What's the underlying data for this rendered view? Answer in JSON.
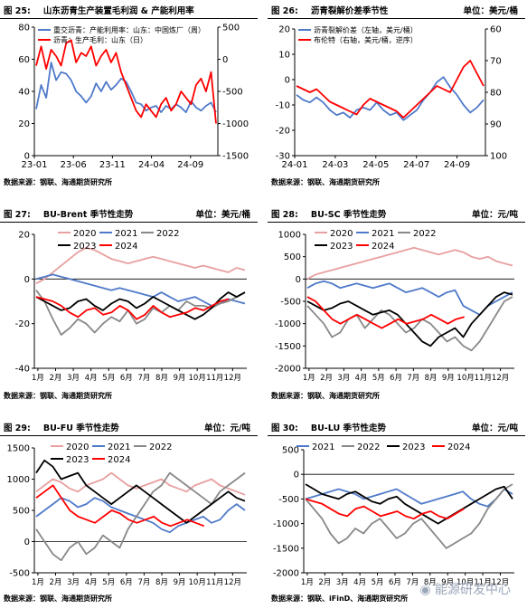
{
  "footer": {
    "brand": "能源研发中心"
  },
  "source_text": {
    "p1": "数据来源：钢联、海通期货研究所",
    "p2": "数据来源：钢联、海通期货研究所",
    "p3": "数据来源：钢联、海通期货研究所",
    "p4": "数据来源：钢联、海通期货研究所",
    "p5": "数据来源：钢联、海通期货研究所",
    "p6": "数据来源：钢联、iFinD、海通期货研究所"
  },
  "chart_data": [
    {
      "id": "p1",
      "fig_no": "图 25:",
      "type": "line",
      "title": "山东沥青生产装置毛利润 & 产能利用率",
      "unit": "",
      "x_ticks": [
        "23-01",
        "23-06",
        "23-11",
        "24-04",
        "24-09"
      ],
      "y_left": {
        "range": [
          0,
          80
        ],
        "ticks": [
          0,
          20,
          40,
          60,
          80
        ]
      },
      "y_right": {
        "range": [
          -1500,
          500
        ],
        "ticks": [
          500,
          0,
          -500,
          -1000,
          -1500
        ]
      },
      "series": [
        {
          "name": "重交沥青：产能利用率：山东：中国炼厂（周）",
          "color": "#4f7ac9",
          "axis": "left",
          "values": [
            29,
            44,
            36,
            58,
            47,
            52,
            51,
            47,
            40,
            37,
            33,
            37,
            45,
            40,
            46,
            41,
            44,
            48,
            46,
            40,
            33,
            32,
            28,
            30,
            31,
            27,
            31,
            29,
            32,
            30,
            27,
            34,
            30,
            28,
            31,
            33,
            27
          ]
        },
        {
          "name": "沥青：生产毛利：山东（日）",
          "color": "#ff0000",
          "axis": "right",
          "values": [
            -100,
            200,
            -150,
            150,
            50,
            -100,
            250,
            300,
            -50,
            100,
            50,
            200,
            -100,
            50,
            150,
            -50,
            100,
            -200,
            -400,
            -600,
            -800,
            -900,
            -700,
            -800,
            -900,
            -700,
            -600,
            -800,
            -700,
            -500,
            -600,
            -700,
            -400,
            -300,
            -500,
            -200,
            -1000
          ]
        }
      ]
    },
    {
      "id": "p2",
      "fig_no": "图 26:",
      "type": "line",
      "title": "沥青裂解价差季节性",
      "unit": "单位：美元/桶",
      "x_ticks": [
        "24-01",
        "24-03",
        "24-05",
        "24-07",
        "24-09"
      ],
      "y_left": {
        "range": [
          -30,
          20
        ],
        "ticks": [
          20,
          10,
          0,
          -10,
          -20,
          -30
        ]
      },
      "y_right": {
        "range": [
          60,
          100
        ],
        "ticks": [
          60,
          70,
          80,
          90,
          100
        ],
        "label": "逆序"
      },
      "series": [
        {
          "name": "沥青裂解价差（左轴，美元/桶）",
          "color": "#4f7ac9",
          "axis": "left",
          "values": [
            -6,
            -8,
            -9,
            -7,
            -9,
            -12,
            -14,
            -13,
            -15,
            -12,
            -11,
            -12,
            -9,
            -12,
            -14,
            -13,
            -16,
            -14,
            -12,
            -8,
            -5,
            -1,
            1,
            -3,
            -6,
            -10,
            -13,
            -11,
            -8
          ]
        },
        {
          "name": "布伦特（右轴，美元/桶，逆序）",
          "color": "#ff0000",
          "axis": "right",
          "values": [
            78,
            79,
            80,
            79,
            81,
            83,
            84,
            85,
            86,
            87,
            84,
            82,
            83,
            84,
            85,
            86,
            88,
            86,
            84,
            82,
            80,
            78,
            79,
            80,
            76,
            72,
            70,
            74,
            78
          ]
        }
      ]
    },
    {
      "id": "p3",
      "fig_no": "图 27:",
      "type": "line",
      "title": "BU-Brent 季节性走势",
      "unit": "单位：美元/桶",
      "x_ticks": [
        "1月",
        "2月",
        "3月",
        "4月",
        "5月",
        "6月",
        "7月",
        "8月",
        "9月",
        "10月",
        "11月",
        "12月"
      ],
      "y_left": {
        "range": [
          -40,
          20
        ],
        "ticks": [
          20,
          0,
          -20,
          -40
        ]
      },
      "series": [
        {
          "name": "2020",
          "color": "#e8a0a0",
          "values": [
            -2,
            0,
            3,
            6,
            9,
            12,
            14,
            13,
            11,
            9,
            8,
            7,
            8,
            9,
            10,
            9,
            8,
            7,
            6,
            5,
            6,
            5,
            4,
            3,
            5,
            4
          ]
        },
        {
          "name": "2021",
          "color": "#4f7ac9",
          "values": [
            0,
            1,
            2,
            1,
            0,
            -1,
            -2,
            -3,
            -4,
            -5,
            -4,
            -5,
            -6,
            -7,
            -8,
            -6,
            -8,
            -10,
            -9,
            -8,
            -10,
            -12,
            -11,
            -9,
            -10,
            -11
          ]
        },
        {
          "name": "2022",
          "color": "#888888",
          "values": [
            -5,
            -10,
            -18,
            -25,
            -22,
            -18,
            -20,
            -24,
            -20,
            -17,
            -19,
            -14,
            -20,
            -18,
            -13,
            -15,
            -12,
            -14,
            -10,
            -12,
            -12,
            -13,
            -11,
            -10,
            -8,
            -6
          ]
        },
        {
          "name": "2023",
          "color": "#000000",
          "values": [
            -8,
            -10,
            -12,
            -14,
            -13,
            -10,
            -9,
            -12,
            -14,
            -11,
            -9,
            -10,
            -13,
            -11,
            -8,
            -10,
            -12,
            -14,
            -16,
            -18,
            -16,
            -13,
            -9,
            -6,
            -8,
            -6
          ]
        },
        {
          "name": "2024",
          "color": "#ff0000",
          "values": [
            -8,
            -9,
            -10,
            -12,
            -15,
            -17,
            -14,
            -13,
            -16,
            -15,
            -12,
            -14,
            -18,
            -16,
            -12,
            -15,
            -17,
            -16,
            -15,
            -13,
            -14,
            -12,
            -10,
            -9
          ]
        }
      ]
    },
    {
      "id": "p4",
      "fig_no": "图 28:",
      "type": "line",
      "title": "BU-SC 季节性走势",
      "unit": "单位：元/吨",
      "x_ticks": [
        "1月",
        "2月",
        "3月",
        "4月",
        "5月",
        "6月",
        "7月",
        "8月",
        "9月",
        "10月",
        "11月",
        "12月"
      ],
      "y_left": {
        "range": [
          -2000,
          1000
        ],
        "ticks": [
          1000,
          500,
          0,
          -500,
          -1000,
          -1500,
          -2000
        ]
      },
      "series": [
        {
          "name": "2020",
          "color": "#e8a0a0",
          "values": [
            0,
            100,
            150,
            200,
            250,
            300,
            350,
            400,
            450,
            500,
            550,
            600,
            650,
            700,
            650,
            600,
            550,
            600,
            650,
            600,
            500,
            450,
            500,
            400,
            350,
            300
          ]
        },
        {
          "name": "2021",
          "color": "#4f7ac9",
          "values": [
            -200,
            -100,
            -50,
            -100,
            -200,
            -150,
            -100,
            -150,
            -200,
            -150,
            -100,
            -200,
            -300,
            -250,
            -200,
            -300,
            -400,
            -300,
            -250,
            -600,
            -700,
            -800,
            -600,
            -500,
            -400,
            -300
          ]
        },
        {
          "name": "2022",
          "color": "#888888",
          "values": [
            -600,
            -800,
            -1000,
            -1300,
            -1200,
            -900,
            -800,
            -1100,
            -900,
            -700,
            -800,
            -1000,
            -1200,
            -1100,
            -900,
            -1000,
            -1200,
            -1400,
            -1300,
            -1500,
            -1600,
            -1400,
            -1100,
            -800,
            -500,
            -400
          ]
        },
        {
          "name": "2023",
          "color": "#000000",
          "values": [
            -500,
            -600,
            -700,
            -650,
            -550,
            -500,
            -600,
            -700,
            -800,
            -750,
            -700,
            -800,
            -1000,
            -1200,
            -1400,
            -1500,
            -1300,
            -1200,
            -1100,
            -1300,
            -1000,
            -800,
            -600,
            -400,
            -300,
            -350
          ]
        },
        {
          "name": "2024",
          "color": "#ff0000",
          "values": [
            -400,
            -500,
            -700,
            -900,
            -1000,
            -900,
            -800,
            -900,
            -1000,
            -1100,
            -1000,
            -900,
            -1000,
            -950,
            -900,
            -800,
            -900,
            -1000,
            -900,
            -850
          ]
        }
      ]
    },
    {
      "id": "p5",
      "fig_no": "图 29:",
      "type": "line",
      "title": "BU-FU 季节性走势",
      "unit": "单位：元/吨",
      "x_ticks": [
        "1月",
        "2月",
        "3月",
        "4月",
        "5月",
        "6月",
        "7月",
        "8月",
        "9月",
        "10月",
        "11月",
        "12月"
      ],
      "y_left": {
        "range": [
          -500,
          1500
        ],
        "ticks": [
          1500,
          1000,
          500,
          0,
          -500
        ]
      },
      "series": [
        {
          "name": "2020",
          "color": "#e8a0a0",
          "values": [
            800,
            900,
            1000,
            950,
            850,
            800,
            900,
            950,
            1000,
            1100,
            1000,
            900,
            850,
            900,
            950,
            1000,
            900,
            850,
            800,
            900,
            950,
            1000,
            900,
            850,
            800,
            750
          ]
        },
        {
          "name": "2021",
          "color": "#4f7ac9",
          "values": [
            400,
            500,
            600,
            700,
            650,
            550,
            600,
            700,
            650,
            550,
            500,
            450,
            400,
            350,
            300,
            200,
            150,
            250,
            300,
            350,
            400,
            300,
            350,
            500,
            600,
            500
          ]
        },
        {
          "name": "2022",
          "color": "#888888",
          "values": [
            200,
            0,
            -200,
            -300,
            -100,
            0,
            -200,
            -100,
            100,
            0,
            -100,
            200,
            400,
            600,
            800,
            900,
            1100,
            1000,
            900,
            800,
            700,
            600,
            800,
            900,
            1000,
            1100
          ]
        },
        {
          "name": "2023",
          "color": "#000000",
          "values": [
            1100,
            1300,
            1200,
            1000,
            1050,
            1100,
            900,
            800,
            700,
            600,
            700,
            800,
            900,
            800,
            700,
            600,
            500,
            400,
            300,
            400,
            500,
            600,
            700,
            800,
            700,
            650
          ]
        },
        {
          "name": "2024",
          "color": "#ff0000",
          "values": [
            700,
            800,
            900,
            700,
            500,
            400,
            350,
            300,
            400,
            500,
            450,
            350,
            300,
            350,
            400,
            300,
            250,
            300,
            350,
            300,
            250
          ]
        }
      ]
    },
    {
      "id": "p6",
      "fig_no": "图 30:",
      "type": "line",
      "title": "BU-LU 季节性走势",
      "unit": "单位：元/吨",
      "x_ticks": [
        "1月",
        "2月",
        "3月",
        "4月",
        "5月",
        "6月",
        "7月",
        "8月",
        "9月",
        "10月",
        "11月",
        "12月"
      ],
      "y_left": {
        "range": [
          -2000,
          500
        ],
        "ticks": [
          500,
          0,
          -500,
          -1000,
          -1500,
          -2000
        ]
      },
      "series": [
        {
          "name": "2021",
          "color": "#4f7ac9",
          "values": [
            -500,
            -450,
            -400,
            -350,
            -300,
            -350,
            -400,
            -500,
            -450,
            -400,
            -350,
            -300,
            -400,
            -500,
            -600,
            -550,
            -500,
            -450,
            -400,
            -350,
            -500,
            -600,
            -650,
            -500,
            -300,
            -400
          ]
        },
        {
          "name": "2022",
          "color": "#888888",
          "values": [
            -500,
            -700,
            -900,
            -1200,
            -1400,
            -1300,
            -1100,
            -1200,
            -1000,
            -900,
            -1100,
            -1300,
            -1200,
            -1000,
            -900,
            -1100,
            -1300,
            -1500,
            -1400,
            -1300,
            -1200,
            -1000,
            -700,
            -500,
            -300,
            -200
          ]
        },
        {
          "name": "2023",
          "color": "#000000",
          "values": [
            -200,
            -300,
            -400,
            -450,
            -500,
            -400,
            -350,
            -450,
            -550,
            -600,
            -500,
            -450,
            -600,
            -700,
            -800,
            -900,
            -1000,
            -900,
            -800,
            -700,
            -600,
            -500,
            -400,
            -300,
            -250,
            -500
          ]
        },
        {
          "name": "2024",
          "color": "#ff0000",
          "values": [
            -500,
            -550,
            -600,
            -700,
            -800,
            -850,
            -700,
            -650,
            -750,
            -850,
            -800,
            -750,
            -850,
            -900,
            -800,
            -750,
            -850,
            -900,
            -800,
            -700
          ]
        }
      ]
    }
  ]
}
